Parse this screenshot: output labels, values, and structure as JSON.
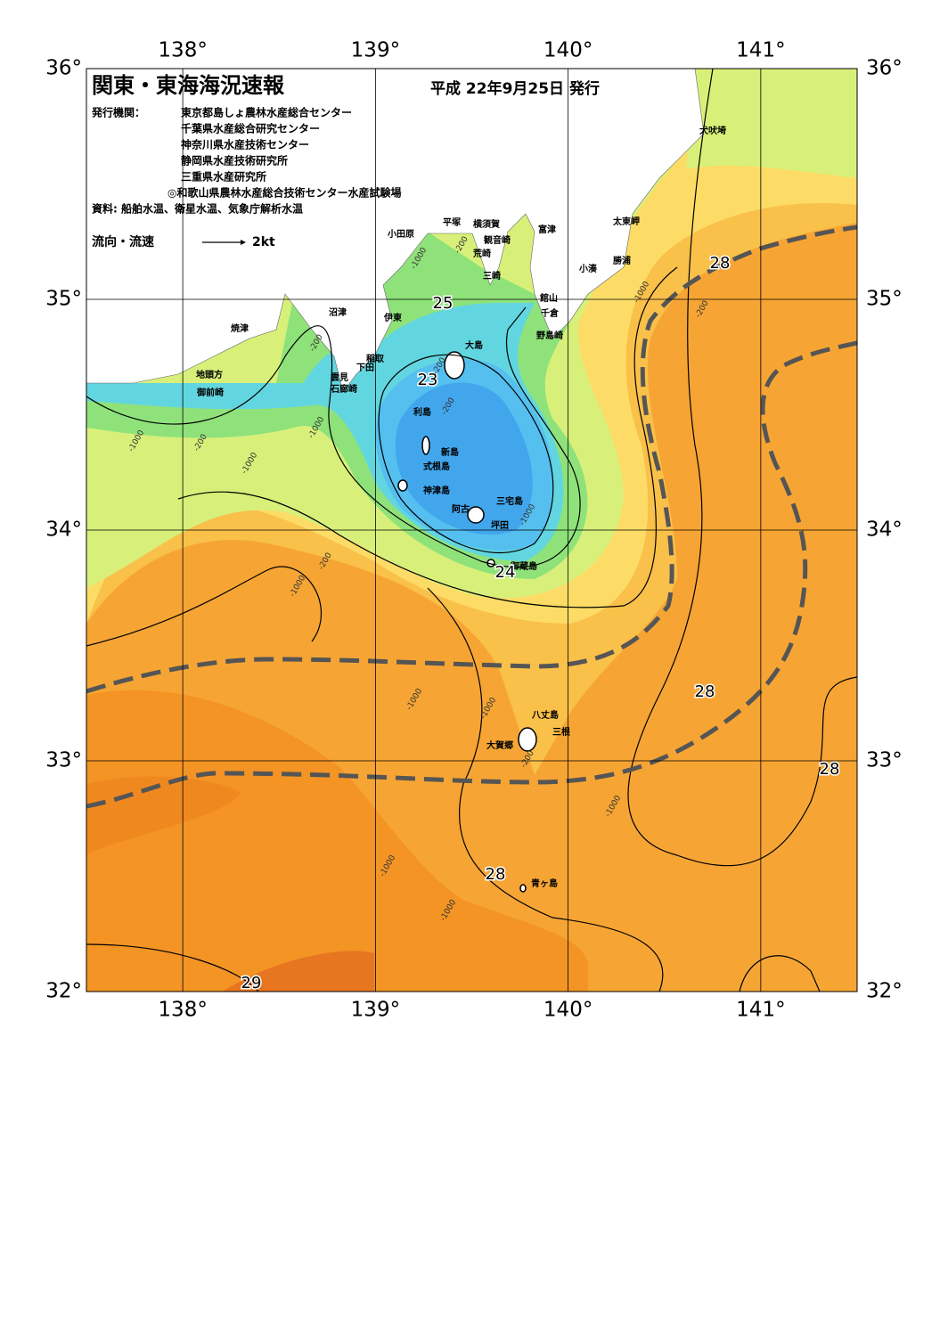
{
  "header": {
    "title": "関東・東海海況速報",
    "date": "平成 22年9月25日 発行",
    "issuer_label": "発行機関：",
    "issuers": [
      "東京都島しょ農林水産総合センター",
      "千葉県水産総合研究センター",
      "神奈川県水産技術センター",
      "静岡県水産技術研究所",
      "三重県水産研究所",
      "◎和歌山県農林水産総合技術センター水産試験場"
    ],
    "source": "資料: 船舶水温、衛星水温、気象庁解析水温",
    "legend_label": "流向・流速",
    "legend_scale": "2kt"
  },
  "map": {
    "lonlim": [
      137.5,
      141.5
    ],
    "latlim": [
      32,
      36
    ],
    "lon_ticks": [
      {
        "value": 138,
        "label": "138°"
      },
      {
        "value": 139,
        "label": "139°"
      },
      {
        "value": 140,
        "label": "140°"
      },
      {
        "value": 141,
        "label": "141°"
      }
    ],
    "lat_ticks": [
      {
        "value": 32,
        "label": "32°"
      },
      {
        "value": 33,
        "label": "33°"
      },
      {
        "value": 34,
        "label": "34°"
      },
      {
        "value": 35,
        "label": "35°"
      },
      {
        "value": 36,
        "label": "36°"
      }
    ],
    "places": [
      "犬吠埼",
      "太東岬",
      "勝浦",
      "小湊",
      "富津",
      "館山",
      "千倉",
      "野島崎",
      "横須賀",
      "観音崎",
      "荒崎",
      "三崎",
      "平塚",
      "小田原",
      "沼津",
      "伊東",
      "焼津",
      "稲取",
      "下田",
      "雲見",
      "石廊崎",
      "地頭方",
      "御前崎",
      "大島",
      "利島",
      "新島",
      "式根島",
      "神津島",
      "阿古",
      "三宅島",
      "坪田",
      "御蔵島",
      "八丈島",
      "三根",
      "大賀郷",
      "青ヶ島"
    ],
    "temperature_labels": [
      "28",
      "25",
      "23",
      "24",
      "28",
      "28",
      "28",
      "29"
    ],
    "depth_labels": [
      "-200",
      "-1000",
      "-200",
      "-1000",
      "-1000",
      "-200",
      "-1000",
      "-200",
      "-200",
      "-1000",
      "-200",
      "-1000",
      "-1000",
      "-200",
      "-1000",
      "-1000",
      "-200",
      "-1000",
      "-1000",
      "-1000"
    ]
  }
}
